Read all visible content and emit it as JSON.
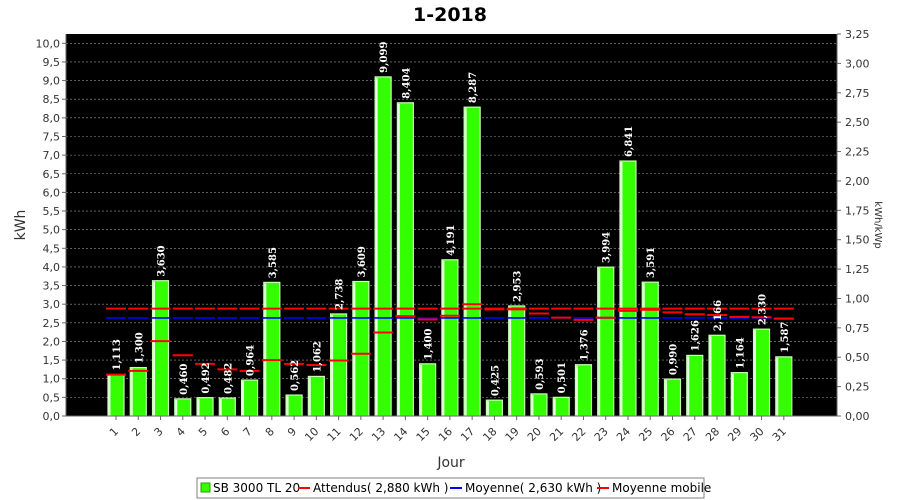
{
  "chart_data": {
    "type": "bar",
    "title": "1-2018",
    "xlabel": "Jour",
    "ylabel": "kWh",
    "ylabel_right": "kWh/kWp",
    "ylim": [
      0,
      10.25
    ],
    "ylim_right": [
      0,
      3.25
    ],
    "yticks": [
      "0,0",
      "0,5",
      "1,0",
      "1,5",
      "2,0",
      "2,5",
      "3,0",
      "3,5",
      "4,0",
      "4,5",
      "5,0",
      "5,5",
      "6,0",
      "6,5",
      "7,0",
      "7,5",
      "8,0",
      "8,5",
      "9,0",
      "9,5",
      "10,0"
    ],
    "yticks_right": [
      "0,00",
      "0,25",
      "0,50",
      "0,75",
      "1,00",
      "1,25",
      "1,50",
      "1,75",
      "2,00",
      "2,25",
      "2,50",
      "2,75",
      "3,00",
      "3,25"
    ],
    "categories": [
      "1",
      "2",
      "3",
      "4",
      "5",
      "6",
      "7",
      "8",
      "9",
      "10",
      "11",
      "12",
      "13",
      "14",
      "15",
      "16",
      "17",
      "18",
      "19",
      "20",
      "21",
      "22",
      "23",
      "24",
      "25",
      "26",
      "27",
      "28",
      "29",
      "30",
      "31"
    ],
    "series": [
      {
        "name": "SB 3000 TL 20",
        "color": "#33ff00",
        "values": [
          1.113,
          1.3,
          3.63,
          0.46,
          0.492,
          0.482,
          0.964,
          3.585,
          0.562,
          1.062,
          2.738,
          3.609,
          9.099,
          8.404,
          1.4,
          4.191,
          8.287,
          0.425,
          2.953,
          0.593,
          0.501,
          1.376,
          3.994,
          6.841,
          3.591,
          0.99,
          1.626,
          2.166,
          1.164,
          2.33,
          1.587
        ],
        "labels": [
          "1,113",
          "1,300",
          "3,630",
          "0,460",
          "0,492",
          "0,482",
          "0,964",
          "3,585",
          "0,562",
          "1,062",
          "2,738",
          "3,609",
          "9,099",
          "8,404",
          "1,400",
          "4,191",
          "8,287",
          "0,425",
          "2,953",
          "0,593",
          "0,501",
          "1,376",
          "3,994",
          "6,841",
          "3,591",
          "0,990",
          "1,626",
          "2,166",
          "1,164",
          "2,330",
          "1,587"
        ]
      },
      {
        "name": "Attendus( 2,880 kWh )",
        "color": "#ff0000",
        "values": [
          2.88,
          2.88,
          2.88,
          2.88,
          2.88,
          2.88,
          2.88,
          2.88,
          2.88,
          2.88,
          2.88,
          2.88,
          2.88,
          2.88,
          2.88,
          2.88,
          2.88,
          2.88,
          2.88,
          2.88,
          2.88,
          2.88,
          2.88,
          2.88,
          2.88,
          2.88,
          2.88,
          2.88,
          2.88,
          2.88,
          2.88
        ]
      },
      {
        "name": "Moyenne( 2,630 kWh )",
        "color": "#0000ff",
        "values": [
          2.63,
          2.63,
          2.63,
          2.63,
          2.63,
          2.63,
          2.63,
          2.63,
          2.63,
          2.63,
          2.63,
          2.63,
          2.63,
          2.63,
          2.63,
          2.63,
          2.63,
          2.63,
          2.63,
          2.63,
          2.63,
          2.63,
          2.63,
          2.63,
          2.63,
          2.63,
          2.63,
          2.63,
          2.63,
          2.63,
          2.63
        ]
      },
      {
        "name": "Moyenne mobile",
        "color": "#ff0000",
        "values": [
          1.11,
          1.21,
          2.01,
          1.63,
          1.4,
          1.25,
          1.21,
          1.5,
          1.4,
          1.37,
          1.49,
          1.67,
          2.24,
          2.68,
          2.59,
          2.69,
          3.0,
          2.86,
          2.86,
          2.75,
          2.64,
          2.58,
          2.64,
          2.82,
          2.85,
          2.78,
          2.73,
          2.71,
          2.66,
          2.65,
          2.61
        ]
      }
    ],
    "grid": true,
    "legend": "bottom-center"
  }
}
